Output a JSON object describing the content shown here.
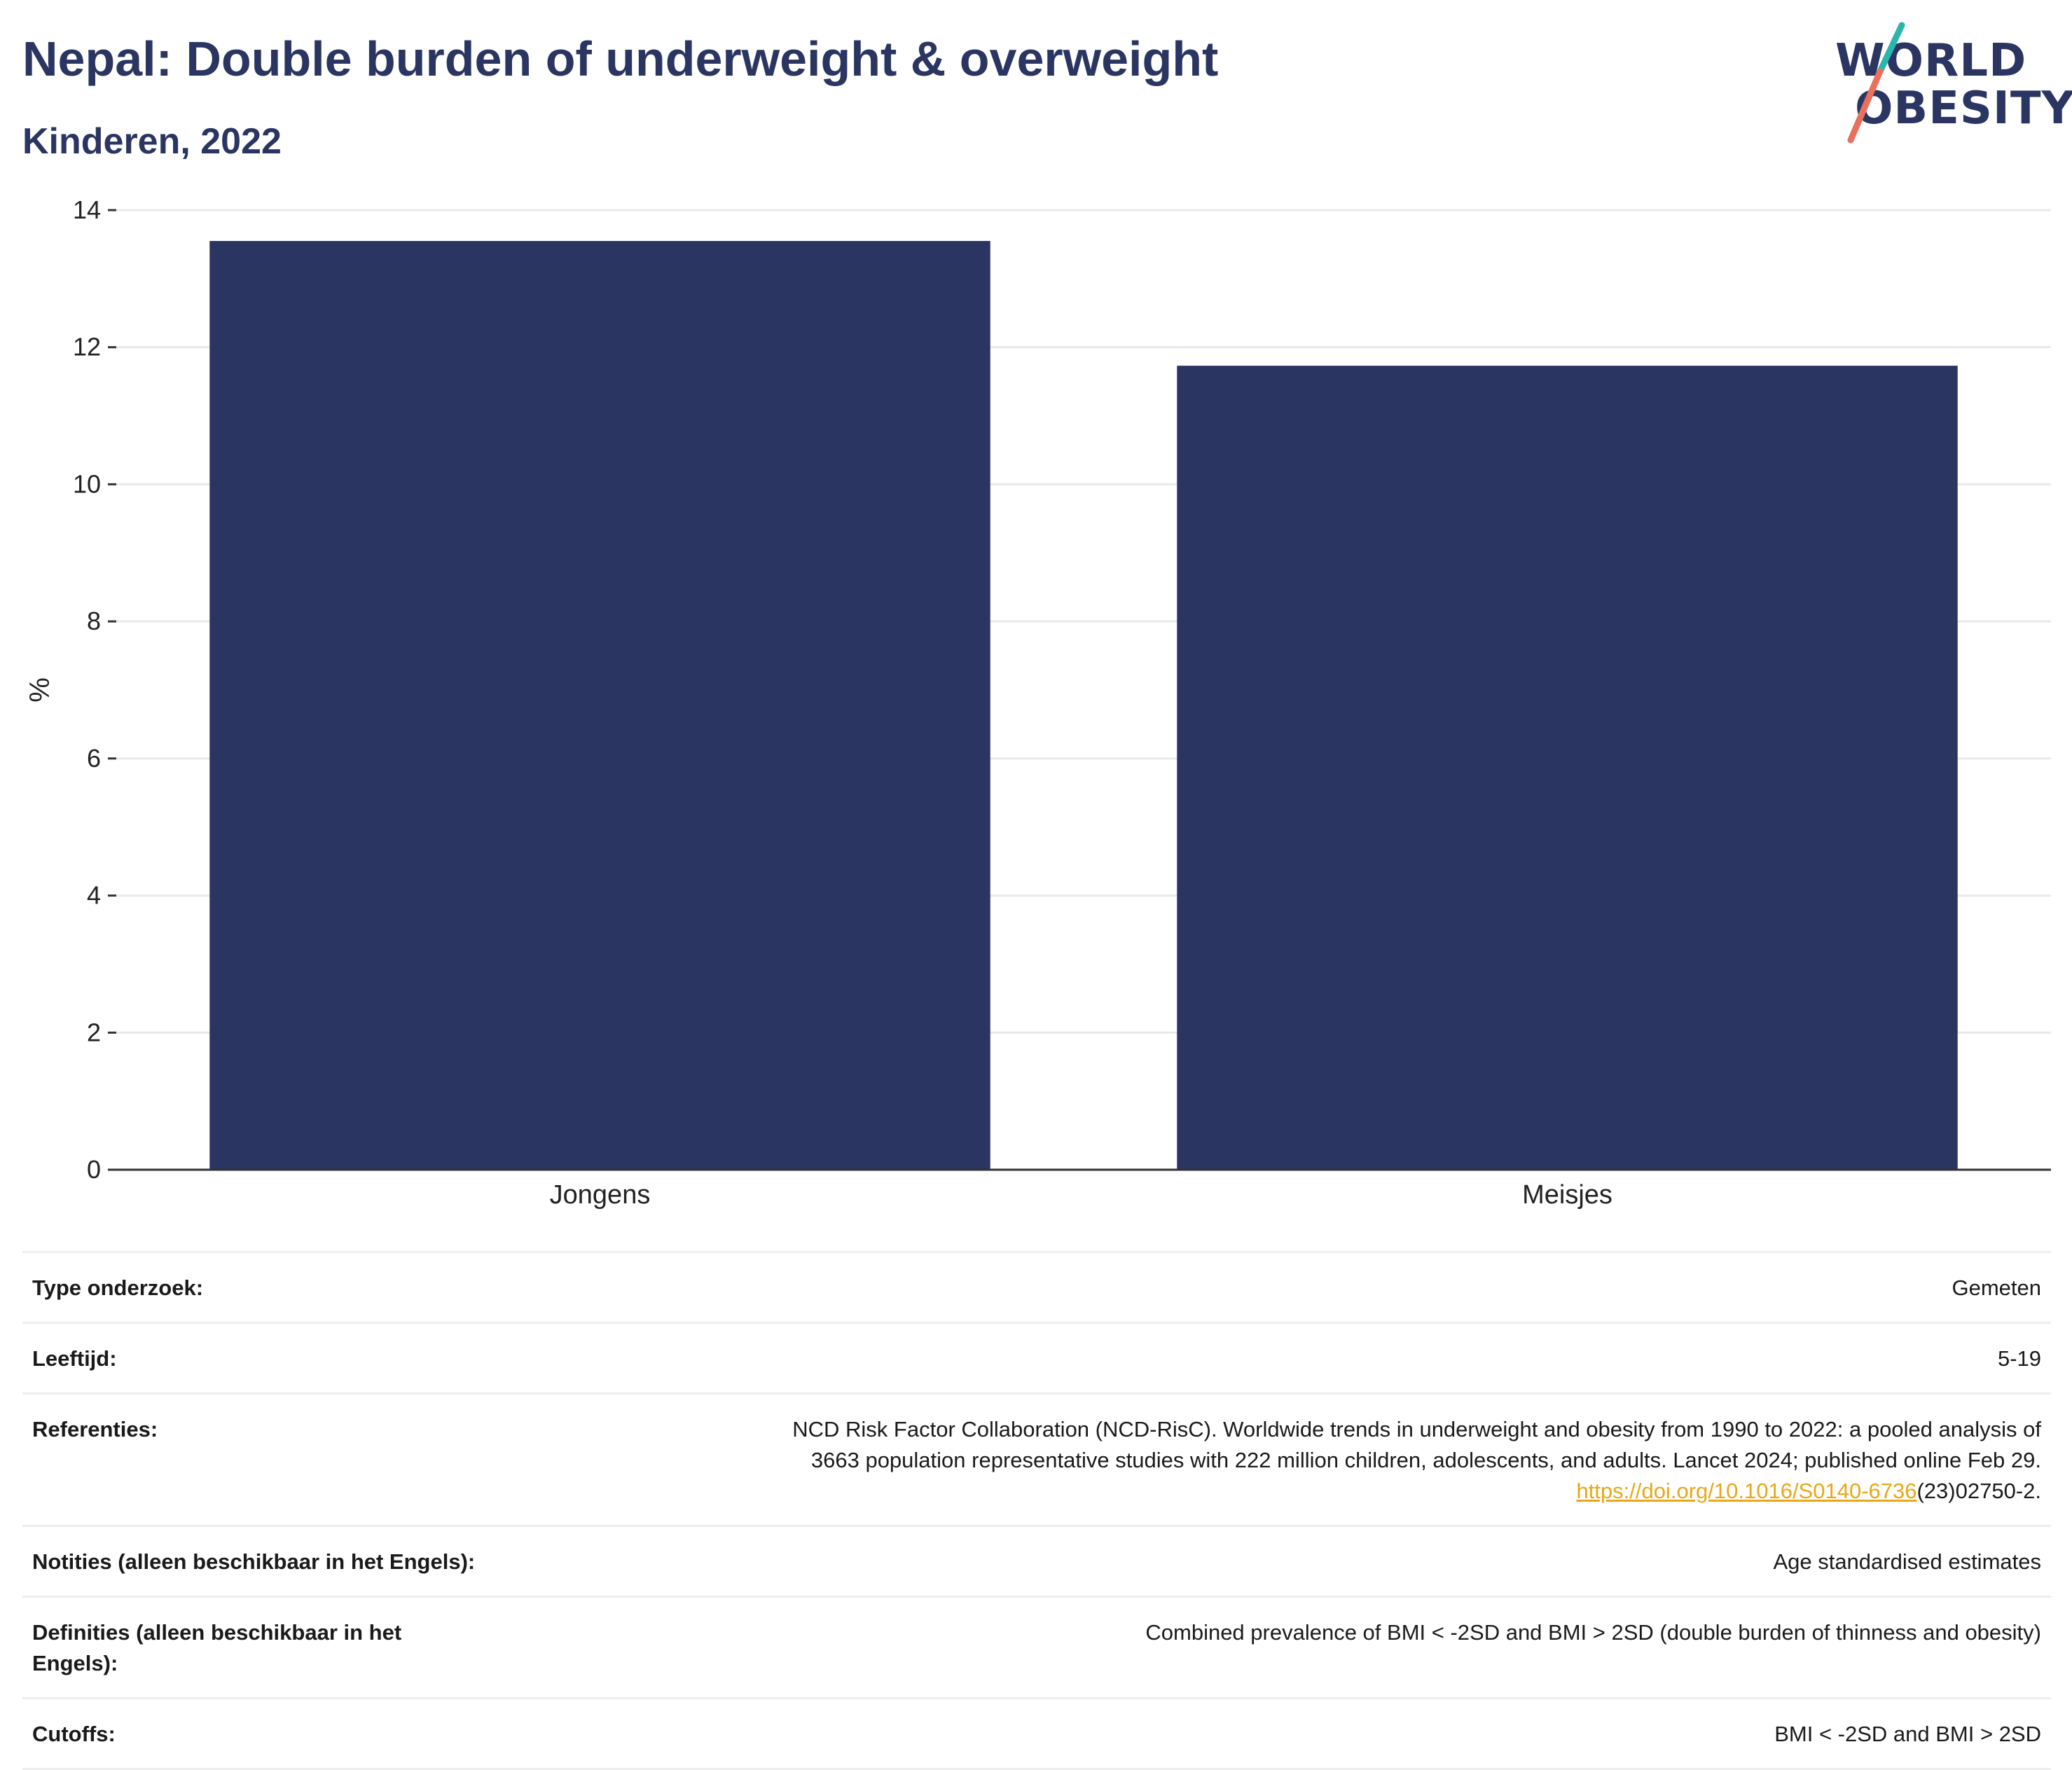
{
  "header": {
    "title": "Nepal: Double burden of underweight & overweight",
    "subtitle": "Kinderen, 2022"
  },
  "logo": {
    "line1": "WORLD",
    "line2": "OBESITY",
    "icon": "world-obesity-logo",
    "slash_colors": [
      "#2bb5ad",
      "#e8705c"
    ]
  },
  "colors": {
    "bar": "#2b3562",
    "grid": "#e9e9e9",
    "axis": "#333333",
    "text": "#2b3562",
    "link": "#e8a817"
  },
  "chart_data": {
    "type": "bar",
    "categories": [
      "Jongens",
      "Meisjes"
    ],
    "values": [
      13.55,
      11.73
    ],
    "ylabel": "%",
    "xlabel": "",
    "ylim": [
      0,
      14
    ],
    "yticks": [
      0,
      2,
      4,
      6,
      8,
      10,
      12,
      14
    ],
    "grid": true
  },
  "info": {
    "type_label": "Type onderzoek:",
    "type_value": "Gemeten",
    "age_label": "Leeftijd:",
    "age_value": "5-19",
    "ref_label": "Referenties:",
    "ref_line1": "NCD Risk Factor Collaboration (NCD-RisC). Worldwide trends in underweight and obesity from 1990 to 2022: a pooled analysis of",
    "ref_line2": "3663 population representative studies with 222 million children, adolescents, and adults. Lancet 2024; published online Feb 29.",
    "ref_link": "https://doi.org/10.1016/S0140-6736",
    "ref_suffix": "(23)02750-2.",
    "notes_label": "Notities (alleen beschikbaar in het Engels):",
    "notes_value": "Age standardised estimates",
    "def_label": "Definities (alleen beschikbaar in het Engels):",
    "def_value": "Combined prevalence of BMI < -2SD and BMI > 2SD (double burden of thinness and obesity)",
    "cutoffs_label": "Cutoffs:",
    "cutoffs_value": "BMI < -2SD and BMI > 2SD"
  }
}
